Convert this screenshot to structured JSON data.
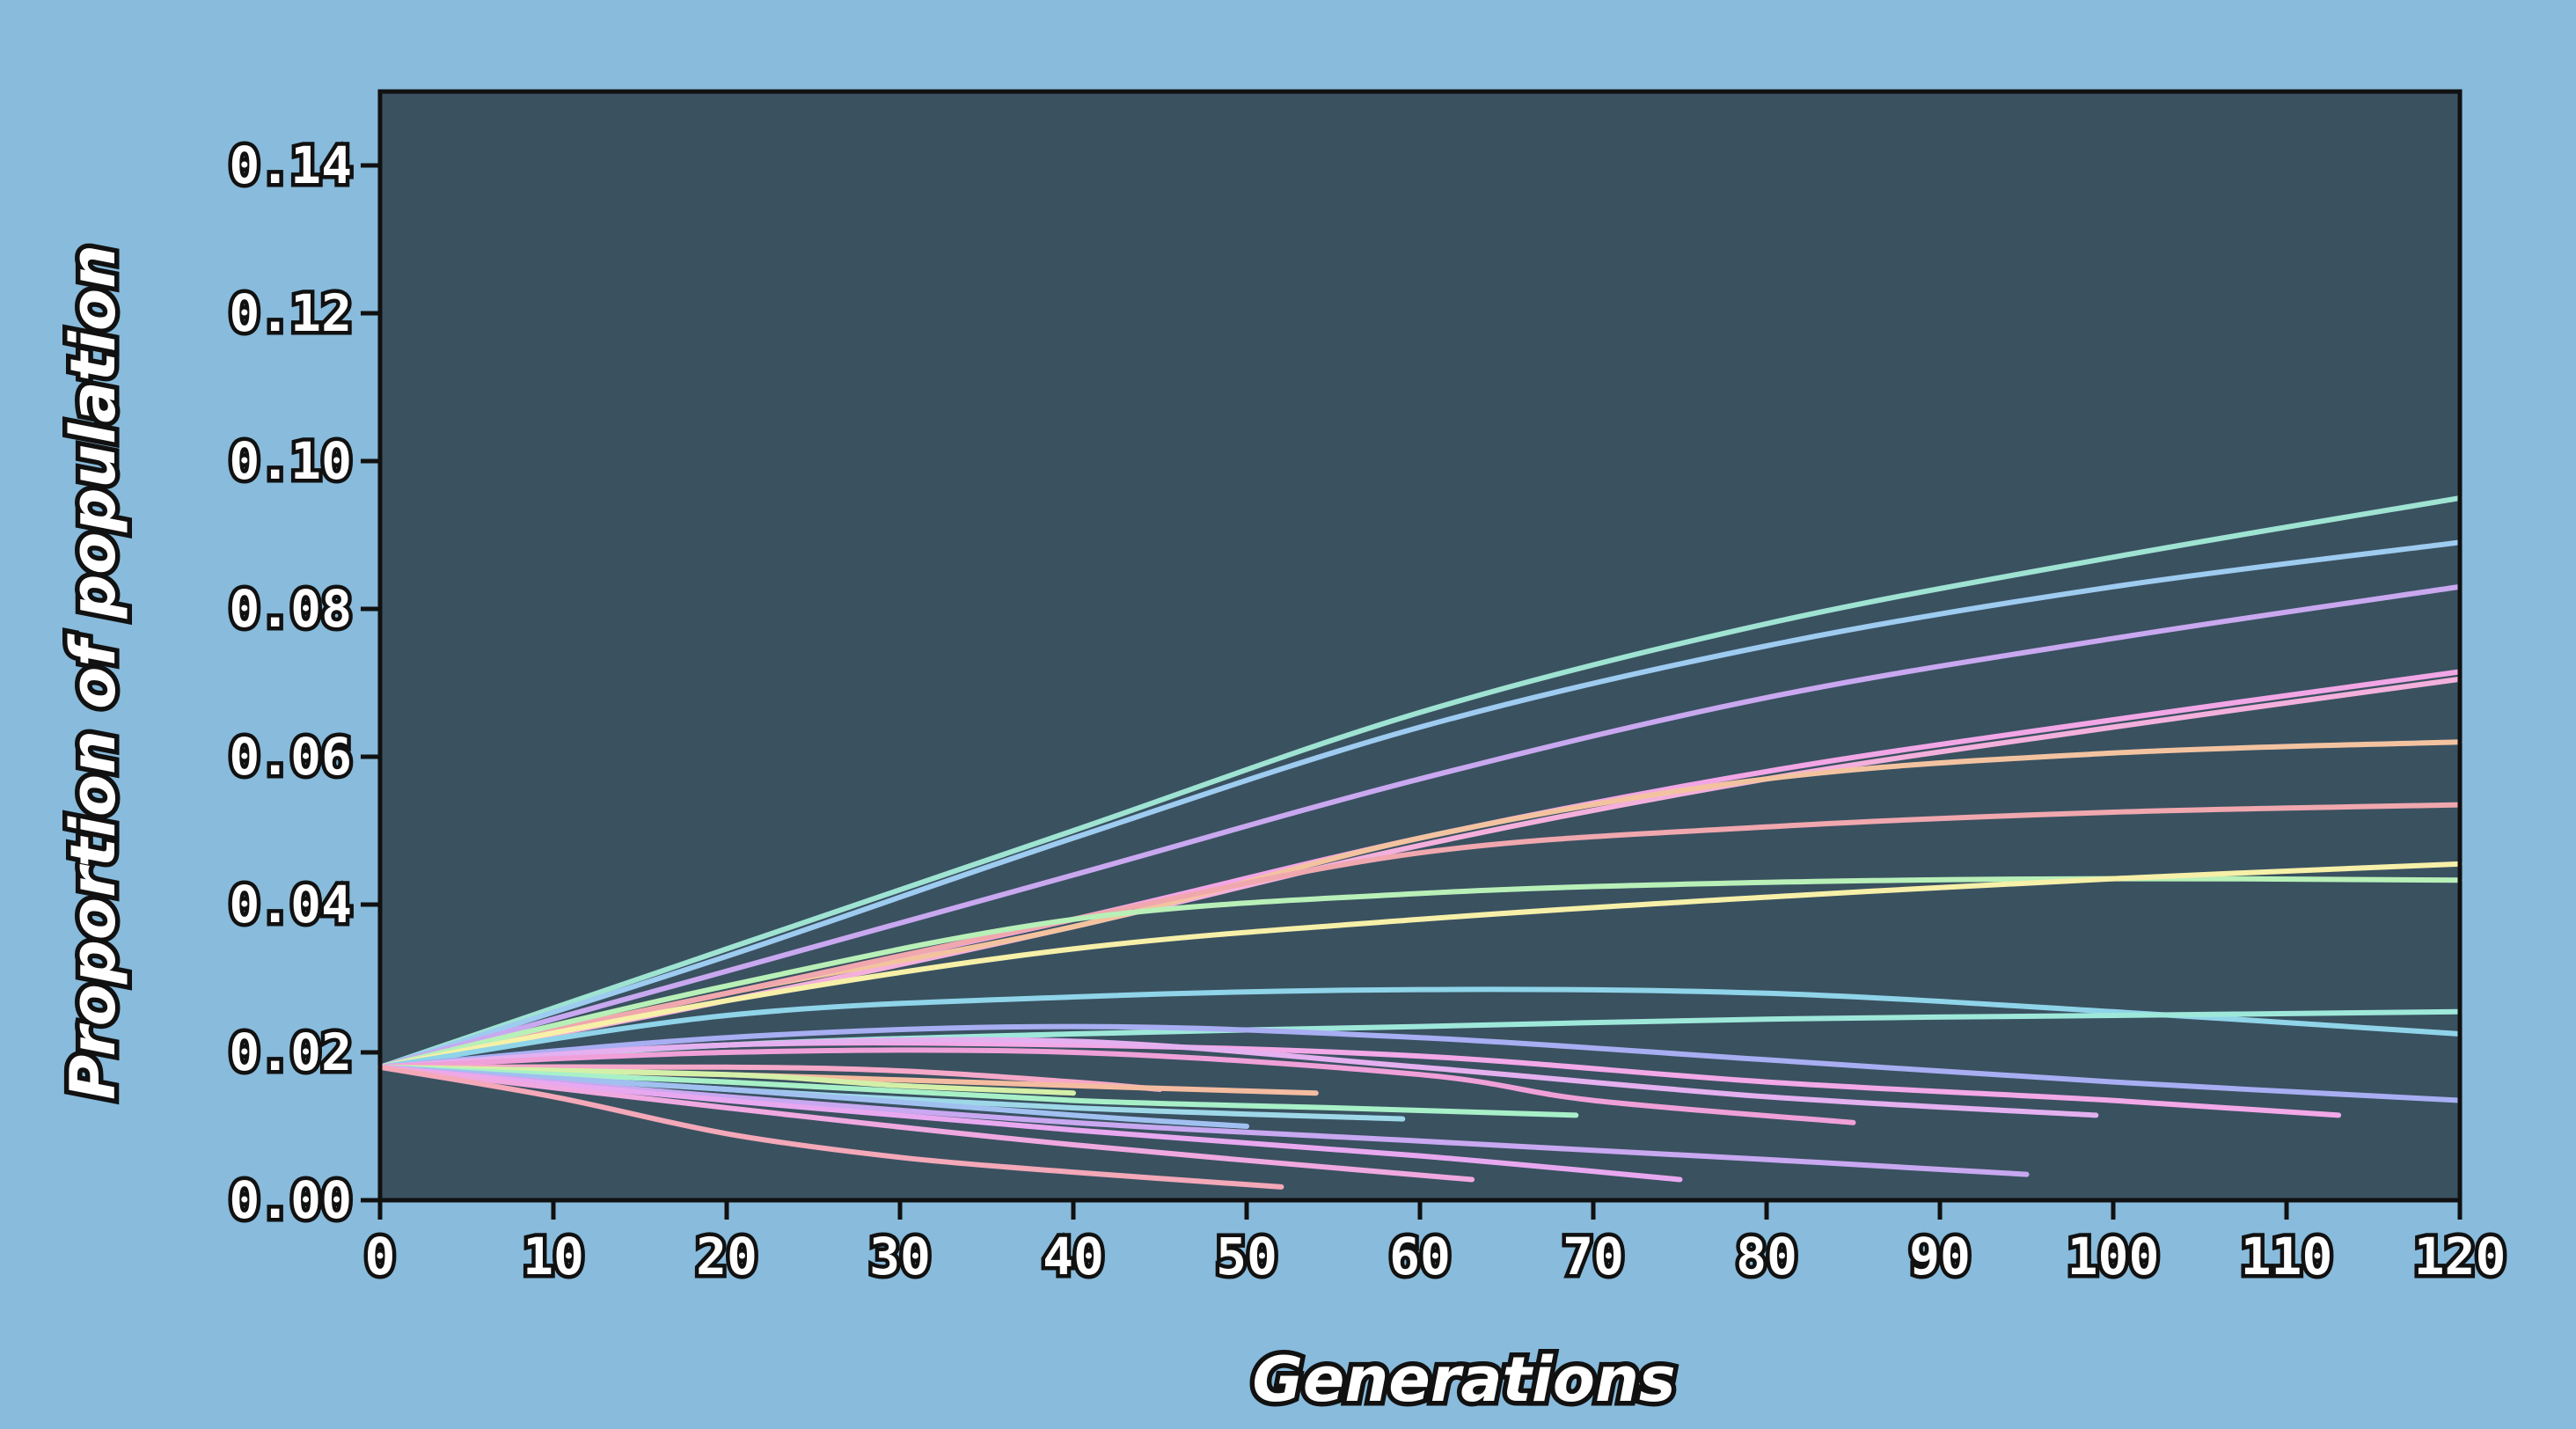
{
  "chart_data": {
    "type": "line",
    "title": "",
    "xlabel": "Generations",
    "ylabel": "Proportion of population",
    "xlim": [
      0,
      120
    ],
    "ylim": [
      0,
      0.15
    ],
    "x_ticks": [
      "0",
      "10",
      "20",
      "30",
      "40",
      "50",
      "60",
      "70",
      "80",
      "90",
      "100",
      "110",
      "120"
    ],
    "y_ticks": [
      "0.00",
      "0.02",
      "0.04",
      "0.06",
      "0.08",
      "0.10",
      "0.12",
      "0.14"
    ],
    "grid": false,
    "legend": "none",
    "colors": {
      "page_background": "#88bbdc",
      "plot_background": "#3a5160",
      "axis": "#111111"
    },
    "series": [
      {
        "color": "#9fe3d2",
        "x": [
          0,
          20,
          40,
          60,
          80,
          100,
          120
        ],
        "y": [
          0.018,
          0.034,
          0.05,
          0.066,
          0.078,
          0.087,
          0.095
        ]
      },
      {
        "color": "#9ecbf0",
        "x": [
          0,
          20,
          40,
          60,
          80,
          100,
          120
        ],
        "y": [
          0.018,
          0.033,
          0.049,
          0.064,
          0.075,
          0.083,
          0.089
        ]
      },
      {
        "color": "#c9a8f0",
        "x": [
          0,
          20,
          40,
          60,
          80,
          100,
          120
        ],
        "y": [
          0.018,
          0.031,
          0.044,
          0.057,
          0.068,
          0.076,
          0.083
        ]
      },
      {
        "color": "#f2a6e6",
        "x": [
          0,
          20,
          40,
          60,
          80,
          100,
          120
        ],
        "y": [
          0.018,
          0.028,
          0.038,
          0.049,
          0.058,
          0.065,
          0.0715
        ]
      },
      {
        "color": "#f4b0dc",
        "x": [
          0,
          20,
          40,
          60,
          80,
          100,
          120
        ],
        "y": [
          0.018,
          0.027,
          0.037,
          0.048,
          0.057,
          0.064,
          0.0705
        ]
      },
      {
        "color": "#f3c3a0",
        "x": [
          0,
          20,
          40,
          60,
          80,
          100,
          120
        ],
        "y": [
          0.018,
          0.028,
          0.037,
          0.049,
          0.057,
          0.0605,
          0.062
        ]
      },
      {
        "color": "#f0a7ae",
        "x": [
          0,
          20,
          40,
          60,
          80,
          100,
          120
        ],
        "y": [
          0.018,
          0.028,
          0.038,
          0.047,
          0.0505,
          0.0525,
          0.0535
        ]
      },
      {
        "color": "#b8f0b8",
        "x": [
          0,
          20,
          40,
          60,
          80,
          100,
          120
        ],
        "y": [
          0.018,
          0.029,
          0.038,
          0.0415,
          0.043,
          0.0435,
          0.0433
        ]
      },
      {
        "color": "#f6f0a8",
        "x": [
          0,
          20,
          40,
          60,
          80,
          100,
          120
        ],
        "y": [
          0.018,
          0.027,
          0.034,
          0.038,
          0.041,
          0.0435,
          0.0455
        ]
      },
      {
        "color": "#8fd4e8",
        "x": [
          0,
          20,
          40,
          60,
          80,
          100,
          120
        ],
        "y": [
          0.018,
          0.025,
          0.0275,
          0.0285,
          0.028,
          0.0255,
          0.0225
        ]
      },
      {
        "color": "#9ee8da",
        "x": [
          0,
          20,
          40,
          60,
          80,
          100,
          120
        ],
        "y": [
          0.018,
          0.021,
          0.0225,
          0.0235,
          0.0245,
          0.025,
          0.0255
        ]
      },
      {
        "color": "#a8aef2",
        "x": [
          0,
          20,
          40,
          60,
          80,
          100,
          120
        ],
        "y": [
          0.018,
          0.022,
          0.0235,
          0.022,
          0.019,
          0.016,
          0.0135
        ]
      },
      {
        "color": "#f3a8e8",
        "x": [
          0,
          20,
          40,
          60,
          80,
          100,
          113
        ],
        "y": [
          0.018,
          0.021,
          0.021,
          0.0195,
          0.016,
          0.0135,
          0.0115
        ]
      },
      {
        "color": "#e4b0f0",
        "x": [
          0,
          20,
          40,
          60,
          80,
          99
        ],
        "y": [
          0.018,
          0.021,
          0.0215,
          0.018,
          0.014,
          0.0115
        ]
      },
      {
        "color": "#f0a0d8",
        "x": [
          0,
          20,
          40,
          60,
          70,
          85
        ],
        "y": [
          0.018,
          0.02,
          0.02,
          0.017,
          0.0135,
          0.0105
        ]
      },
      {
        "color": "#f6a8c8",
        "x": [
          0,
          20,
          30,
          40,
          45
        ],
        "y": [
          0.018,
          0.018,
          0.0175,
          0.016,
          0.015
        ]
      },
      {
        "color": "#f4bca0",
        "x": [
          0,
          20,
          40,
          54
        ],
        "y": [
          0.018,
          0.017,
          0.0155,
          0.0145
        ]
      },
      {
        "color": "#d4f0a8",
        "x": [
          0,
          20,
          30,
          40
        ],
        "y": [
          0.018,
          0.017,
          0.0155,
          0.0145
        ]
      },
      {
        "color": "#a8f0c8",
        "x": [
          0,
          20,
          40,
          55,
          69
        ],
        "y": [
          0.018,
          0.016,
          0.0135,
          0.0125,
          0.0115
        ]
      },
      {
        "color": "#9ed8e8",
        "x": [
          0,
          20,
          40,
          59
        ],
        "y": [
          0.018,
          0.015,
          0.0125,
          0.011
        ]
      },
      {
        "color": "#a0c0f0",
        "x": [
          0,
          20,
          40,
          50
        ],
        "y": [
          0.018,
          0.015,
          0.0115,
          0.01
        ]
      },
      {
        "color": "#c8a8f0",
        "x": [
          0,
          20,
          40,
          60,
          80,
          95
        ],
        "y": [
          0.018,
          0.014,
          0.0105,
          0.008,
          0.0055,
          0.0035
        ]
      },
      {
        "color": "#e8a8f0",
        "x": [
          0,
          20,
          40,
          60,
          75
        ],
        "y": [
          0.018,
          0.0135,
          0.0095,
          0.006,
          0.0028
        ]
      },
      {
        "color": "#f0a8e0",
        "x": [
          0,
          20,
          40,
          63
        ],
        "y": [
          0.018,
          0.0125,
          0.0075,
          0.0028
        ]
      },
      {
        "color": "#f4a8b8",
        "x": [
          0,
          10,
          20,
          30,
          40,
          52
        ],
        "y": [
          0.018,
          0.014,
          0.009,
          0.0058,
          0.0038,
          0.0018
        ]
      }
    ]
  }
}
